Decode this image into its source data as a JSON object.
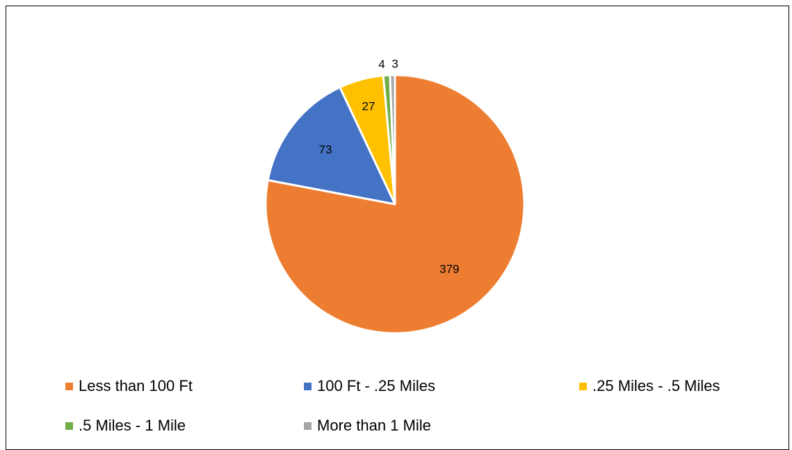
{
  "chart_data": {
    "type": "pie",
    "title": "",
    "categories": [
      "Less than 100 Ft",
      "100 Ft - .25 Miles",
      ".25 Miles - .5 Miles",
      ".5 Miles - 1 Mile",
      "More than 1 Mile"
    ],
    "values": [
      379,
      73,
      27,
      4,
      3
    ],
    "colors": [
      "#ED7D31",
      "#4472C4",
      "#FFC000",
      "#70AD47",
      "#A5A5A5"
    ],
    "data_labels": [
      "379",
      "73",
      "27",
      "4",
      "3"
    ],
    "legend_position": "bottom",
    "slice_border_color": "#FFFFFF"
  }
}
